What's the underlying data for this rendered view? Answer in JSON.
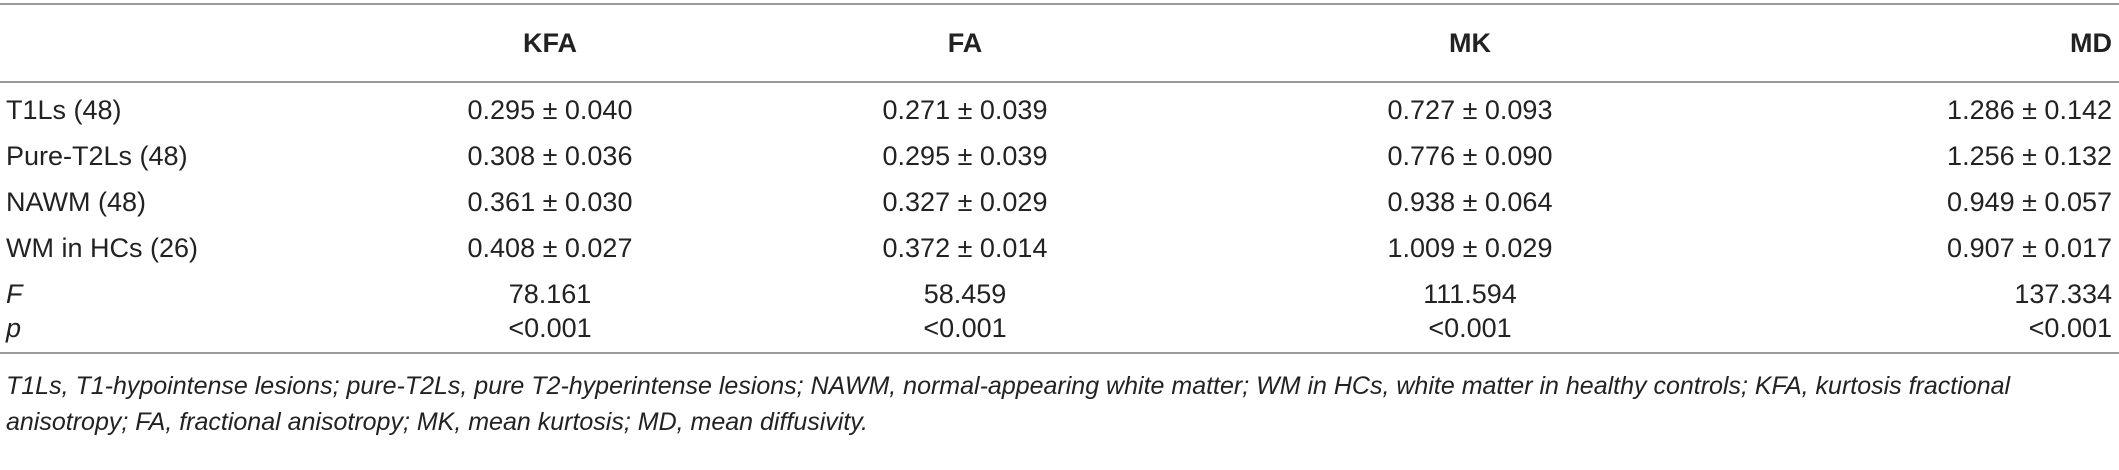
{
  "header": {
    "row_label": "",
    "columns": [
      "KFA",
      "FA",
      "MK",
      "MD"
    ]
  },
  "rows": [
    {
      "label": "T1Ls (48)",
      "values": [
        "0.295 ± 0.040",
        "0.271 ± 0.039",
        "0.727 ± 0.093",
        "1.286 ± 0.142"
      ]
    },
    {
      "label": "Pure-T2Ls (48)",
      "values": [
        "0.308 ± 0.036",
        "0.295 ± 0.039",
        "0.776 ± 0.090",
        "1.256 ± 0.132"
      ]
    },
    {
      "label": "NAWM (48)",
      "values": [
        "0.361 ± 0.030",
        "0.327 ± 0.029",
        "0.938 ± 0.064",
        "0.949 ± 0.057"
      ]
    },
    {
      "label": "WM in HCs (26)",
      "values": [
        "0.408 ± 0.027",
        "0.372 ± 0.014",
        "1.009 ± 0.029",
        "0.907 ± 0.017"
      ]
    },
    {
      "label": "F",
      "values": [
        "78.161",
        "58.459",
        "111.594",
        "137.334"
      ]
    },
    {
      "label": "p",
      "values": [
        "<0.001",
        "<0.001",
        "<0.001",
        "<0.001"
      ]
    }
  ],
  "footnote": "T1Ls, T1-hypointense lesions; pure-T2Ls, pure T2-hyperintense lesions; NAWM, normal-appearing white matter; WM in HCs, white matter in healthy controls; KFA, kurtosis fractional anisotropy; FA, fractional anisotropy; MK, mean kurtosis; MD, mean diffusivity."
}
